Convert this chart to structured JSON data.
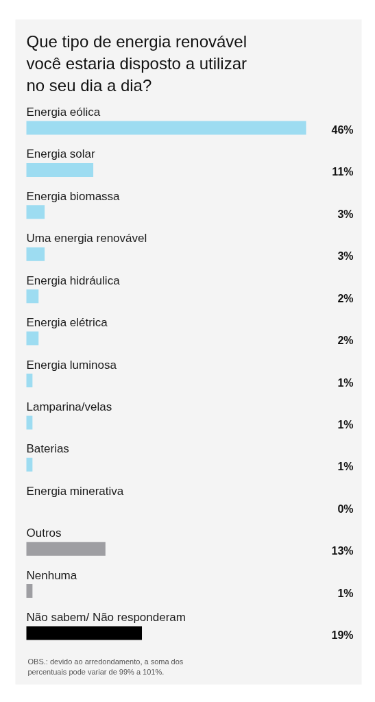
{
  "chart_data": {
    "type": "bar",
    "orientation": "horizontal",
    "tick_labels": "y",
    "title": "Que tipo de energia renovável você estaria disposto a utilizar no seu dia a dia?",
    "categories": [
      "Energia eólica",
      "Energia solar",
      "Energia biomassa",
      "Uma energia renovável",
      "Energia hidráulica",
      "Energia elétrica",
      "Energia luminosa",
      "Lamparina/velas",
      "Baterias",
      "Energia minerativa",
      "Outros",
      "Nenhuma",
      "Não sabem/ Não responderam"
    ],
    "values": [
      46,
      11,
      3,
      3,
      2,
      2,
      1,
      1,
      1,
      0,
      13,
      1,
      19
    ],
    "colors": [
      "#9ddcf1",
      "#9ddcf1",
      "#9ddcf1",
      "#9ddcf1",
      "#9ddcf1",
      "#9ddcf1",
      "#9ddcf1",
      "#9ddcf1",
      "#9ddcf1",
      "#9ddcf1",
      "#9e9ea2",
      "#9e9ea2",
      "#000000"
    ],
    "value_labels": [
      "46%",
      "11%",
      "3%",
      "3%",
      "2%",
      "2%",
      "1%",
      "1%",
      "1%",
      "0%",
      "13%",
      "1%",
      "19%"
    ],
    "annotations": [
      "OBS.: devido ao arredondamento, a soma dos percentuais pode variar de 99% a 101%."
    ]
  }
}
